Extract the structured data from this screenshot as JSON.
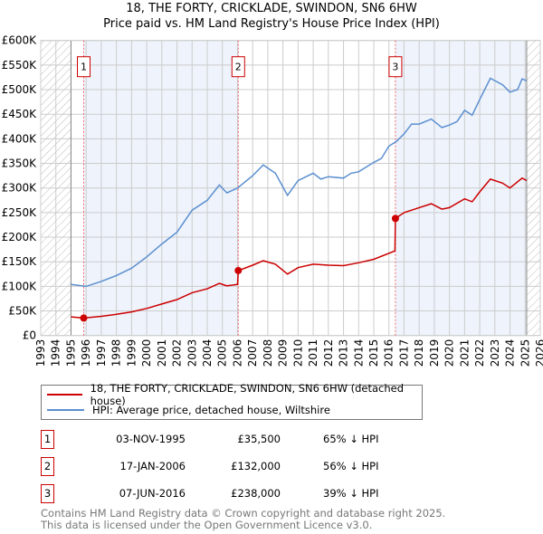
{
  "title": "18, THE FORTY, CRICKLADE, SWINDON, SN6 6HW",
  "subtitle": "Price paid vs. HM Land Registry's House Price Index (HPI)",
  "chart_data": {
    "type": "line",
    "ylim": [
      0,
      600000
    ],
    "xlim": [
      1993,
      2026
    ],
    "yticks": [
      "£0",
      "£50K",
      "£100K",
      "£150K",
      "£200K",
      "£250K",
      "£300K",
      "£350K",
      "£400K",
      "£450K",
      "£500K",
      "£550K",
      "£600K"
    ],
    "xticks": [
      "1993",
      "1994",
      "1995",
      "1996",
      "1997",
      "1998",
      "1999",
      "2000",
      "2001",
      "2002",
      "2003",
      "2004",
      "2005",
      "2006",
      "2007",
      "2008",
      "2009",
      "2010",
      "2011",
      "2012",
      "2013",
      "2014",
      "2015",
      "2016",
      "2017",
      "2018",
      "2019",
      "2020",
      "2021",
      "2022",
      "2023",
      "2024",
      "2025",
      "2026"
    ],
    "series": [
      {
        "name": "18, THE FORTY, CRICKLADE, SWINDON, SN6 6HW (detached house)",
        "color": "#cc0000",
        "x": [
          1995,
          1995.84,
          1997,
          1998,
          1999,
          2000,
          2001,
          2002,
          2003,
          2004,
          2004.8,
          2005.3,
          2006.0,
          2006.05,
          2007,
          2007.7,
          2008.5,
          2009.3,
          2010,
          2011,
          2012,
          2013,
          2014,
          2015,
          2016.4,
          2016.43,
          2017,
          2018,
          2018.8,
          2019.5,
          2020,
          2021,
          2021.5,
          2022,
          2022.7,
          2023.5,
          2024,
          2024.8,
          2025.1
        ],
        "y": [
          38000,
          35500,
          39000,
          43000,
          48000,
          55000,
          64000,
          73000,
          87000,
          95000,
          106000,
          101000,
          104000,
          132000,
          143000,
          152000,
          145000,
          125000,
          138000,
          145000,
          143000,
          142000,
          148000,
          155000,
          172000,
          238000,
          250000,
          260000,
          268000,
          257000,
          260000,
          278000,
          272000,
          292000,
          318000,
          310000,
          300000,
          320000,
          315000
        ]
      },
      {
        "name": "HPI: Average price, detached house, Wiltshire",
        "color": "#5b8fd0",
        "x": [
          1995,
          1996,
          1997,
          1998,
          1999,
          2000,
          2001,
          2002,
          2003,
          2004,
          2004.8,
          2005.3,
          2006,
          2007,
          2007.7,
          2008.5,
          2009.3,
          2010,
          2011,
          2011.5,
          2012,
          2013,
          2013.5,
          2014,
          2015,
          2015.5,
          2016,
          2016.5,
          2017,
          2017.5,
          2018,
          2018.8,
          2019.5,
          2020,
          2020.5,
          2021,
          2021.5,
          2022,
          2022.7,
          2023.5,
          2024,
          2024.5,
          2024.8,
          2025.1
        ],
        "y": [
          104000,
          100000,
          110000,
          122000,
          137000,
          160000,
          186000,
          210000,
          255000,
          275000,
          306000,
          290000,
          300000,
          325000,
          347000,
          330000,
          285000,
          315000,
          330000,
          318000,
          323000,
          320000,
          330000,
          333000,
          352000,
          360000,
          385000,
          395000,
          410000,
          430000,
          430000,
          440000,
          423000,
          428000,
          435000,
          458000,
          448000,
          480000,
          523000,
          510000,
          495000,
          500000,
          522000,
          518000
        ]
      }
    ],
    "sales": [
      {
        "label": "1",
        "x": 1995.84,
        "y": 35500
      },
      {
        "label": "2",
        "x": 2006.05,
        "y": 132000
      },
      {
        "label": "3",
        "x": 2016.43,
        "y": 238000
      }
    ],
    "shaded_range": [
      1995,
      2025.1
    ]
  },
  "legend": [
    "18, THE FORTY, CRICKLADE, SWINDON, SN6 6HW (detached house)",
    "HPI: Average price, detached house, Wiltshire"
  ],
  "transactions": [
    {
      "num": "1",
      "date": "03-NOV-1995",
      "price": "£35,500",
      "hpi": "65% ↓ HPI"
    },
    {
      "num": "2",
      "date": "17-JAN-2006",
      "price": "£132,000",
      "hpi": "56% ↓ HPI"
    },
    {
      "num": "3",
      "date": "07-JUN-2016",
      "price": "£238,000",
      "hpi": "39% ↓ HPI"
    }
  ],
  "footer": [
    "Contains HM Land Registry data © Crown copyright and database right 2025.",
    "This data is licensed under the Open Government Licence v3.0."
  ]
}
